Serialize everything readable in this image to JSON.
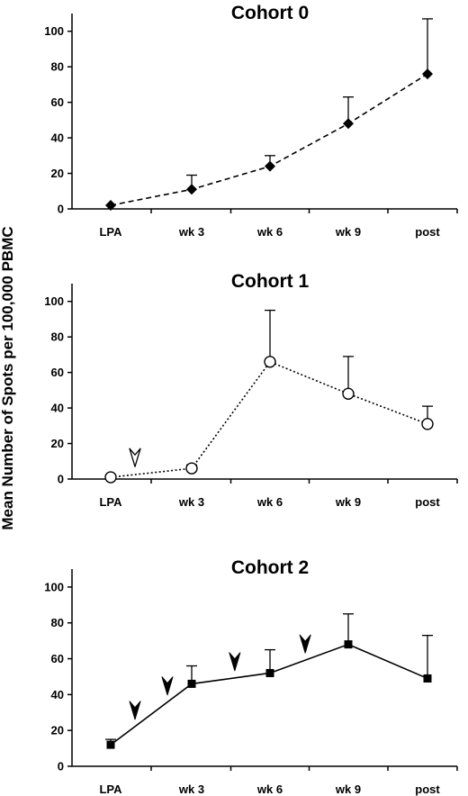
{
  "figure": {
    "ylabel": "Mean Number of Spots per 100,000 PBMC"
  },
  "chart_data": [
    {
      "type": "line",
      "title": "Cohort 0",
      "categories": [
        "LPA",
        "wk 3",
        "wk 6",
        "wk 9",
        "post"
      ],
      "ylim": [
        0,
        110
      ],
      "yticks": [
        0,
        20,
        40,
        60,
        80,
        100
      ],
      "series": [
        {
          "values": [
            2,
            11,
            24,
            48,
            76
          ],
          "error_upper": [
            2,
            19,
            30,
            63,
            107
          ],
          "line_style": "dashed",
          "marker": "diamond-filled",
          "color": "#000000"
        }
      ],
      "arrows": []
    },
    {
      "type": "line",
      "title": "Cohort 1",
      "categories": [
        "LPA",
        "wk 3",
        "wk 6",
        "wk 9",
        "post"
      ],
      "ylim": [
        0,
        110
      ],
      "yticks": [
        0,
        20,
        40,
        60,
        80,
        100
      ],
      "series": [
        {
          "values": [
            1,
            6,
            66,
            48,
            31
          ],
          "error_upper": [
            1,
            8,
            95,
            69,
            41
          ],
          "line_style": "dotted",
          "marker": "circle-open",
          "color": "#000000"
        }
      ],
      "arrows": [
        {
          "x": 0.3,
          "style": "open"
        }
      ]
    },
    {
      "type": "line",
      "title": "Cohort 2",
      "categories": [
        "LPA",
        "wk 3",
        "wk 6",
        "wk 9",
        "post"
      ],
      "ylim": [
        0,
        110
      ],
      "yticks": [
        0,
        20,
        40,
        60,
        80,
        100
      ],
      "series": [
        {
          "values": [
            12,
            46,
            52,
            68,
            49
          ],
          "error_upper": [
            15,
            56,
            65,
            85,
            73
          ],
          "line_style": "solid",
          "marker": "square-filled",
          "color": "#000000"
        }
      ],
      "arrows": [
        {
          "x": 0.3,
          "style": "filled"
        },
        {
          "x": 0.7,
          "style": "filled"
        },
        {
          "x": 1.55,
          "style": "filled"
        },
        {
          "x": 2.45,
          "style": "filled"
        }
      ]
    }
  ]
}
